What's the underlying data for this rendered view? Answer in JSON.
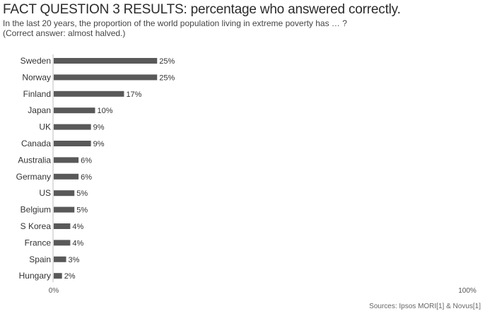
{
  "header": {
    "title_lead": "FACT QUESTION 3 RESULTS:",
    "title_rest": " percentage who answered correctly.",
    "subtitle": "In the last 20 years, the proportion of the world population living in extreme poverty has … ?",
    "note": "(Correct answer: almost halved.)"
  },
  "footer": {
    "source": "Sources: Ipsos MORI[1] & Novus[1]"
  },
  "colors": {
    "bar": "#595959",
    "axis": "#bdbdbd",
    "text": "#333333"
  },
  "chart_data": {
    "type": "bar",
    "orientation": "horizontal",
    "categories": [
      "Sweden",
      "Norway",
      "Finland",
      "Japan",
      "UK",
      "Canada",
      "Australia",
      "Germany",
      "US",
      "Belgium",
      "S Korea",
      "France",
      "Spain",
      "Hungary"
    ],
    "values": [
      25,
      25,
      17,
      10,
      9,
      9,
      6,
      6,
      5,
      5,
      4,
      4,
      3,
      2
    ],
    "data_labels": [
      "25%",
      "25%",
      "17%",
      "10%",
      "9%",
      "9%",
      "6%",
      "6%",
      "5%",
      "5%",
      "4%",
      "4%",
      "3%",
      "2%"
    ],
    "x_ticks": [
      0,
      100
    ],
    "x_tick_labels": [
      "0%",
      "100%"
    ],
    "xlim": [
      0,
      100
    ],
    "grid": false
  }
}
